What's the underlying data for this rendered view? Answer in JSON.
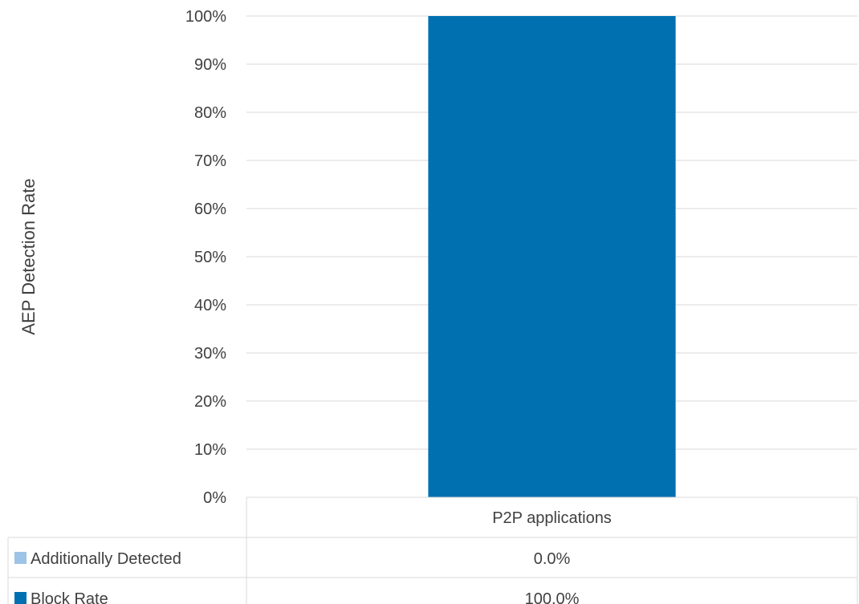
{
  "chart_data": {
    "type": "bar",
    "stacked": true,
    "categories": [
      "P2P applications"
    ],
    "series": [
      {
        "name": "Block Rate",
        "values": [
          100.0
        ],
        "color": "#0070b0"
      },
      {
        "name": "Additionally Detected",
        "values": [
          0.0
        ],
        "color": "#9dc3e6"
      }
    ],
    "ylabel": "AEP Detection Rate",
    "ylim": [
      0,
      100
    ],
    "yticks": [
      "0%",
      "10%",
      "20%",
      "30%",
      "40%",
      "50%",
      "60%",
      "70%",
      "80%",
      "90%",
      "100%"
    ],
    "grid": true,
    "legend": "data-table-below",
    "data_table": {
      "rows": [
        {
          "label": "Additionally Detected",
          "values": [
            "0.0%"
          ],
          "color": "#9dc3e6"
        },
        {
          "label": "Block Rate",
          "values": [
            "100.0%"
          ],
          "color": "#0070b0"
        }
      ]
    }
  }
}
